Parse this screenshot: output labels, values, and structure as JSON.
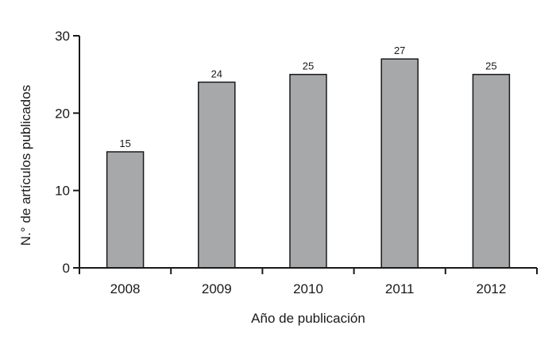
{
  "chart_data": {
    "type": "bar",
    "categories": [
      "2008",
      "2009",
      "2010",
      "2011",
      "2012"
    ],
    "values": [
      15,
      24,
      25,
      27,
      25
    ],
    "data_labels": [
      "15",
      "24",
      "25",
      "27",
      "25"
    ],
    "title": "",
    "xlabel": "Año de publicación",
    "ylabel": "N.° de artículos publicados",
    "ylim": [
      0,
      30
    ],
    "yticks": [
      0,
      10,
      20,
      30
    ],
    "grid": false,
    "legend": "none",
    "colors": {
      "bar_fill": "#a7a8aa",
      "bar_stroke": "#1a1a1a",
      "axis": "#1a1a1a"
    }
  }
}
